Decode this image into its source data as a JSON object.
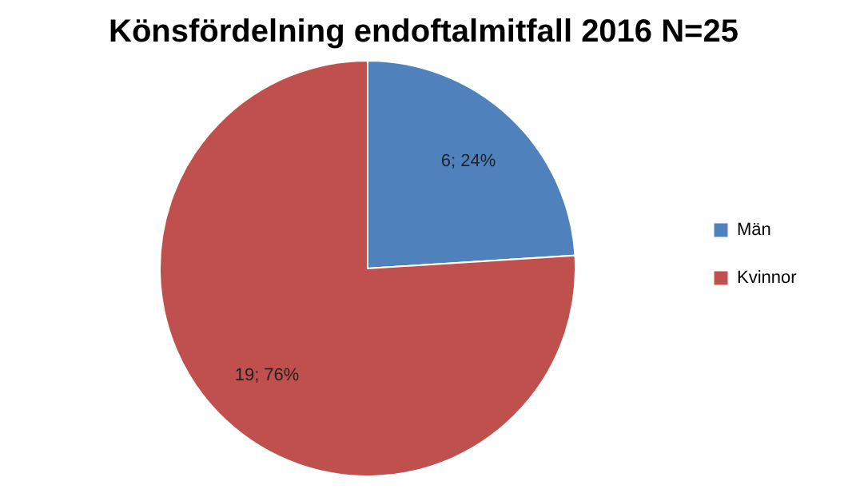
{
  "chart_data": {
    "type": "pie",
    "title": "Könsfördelning endoftalmitfall 2016 N=25",
    "categories": [
      "Män",
      "Kvinnor"
    ],
    "values": [
      6,
      19
    ],
    "colors": [
      "#4f81bd",
      "#c0504d"
    ],
    "value_labels": [
      "6; 24%",
      "19; 76%"
    ],
    "legend": "right"
  }
}
